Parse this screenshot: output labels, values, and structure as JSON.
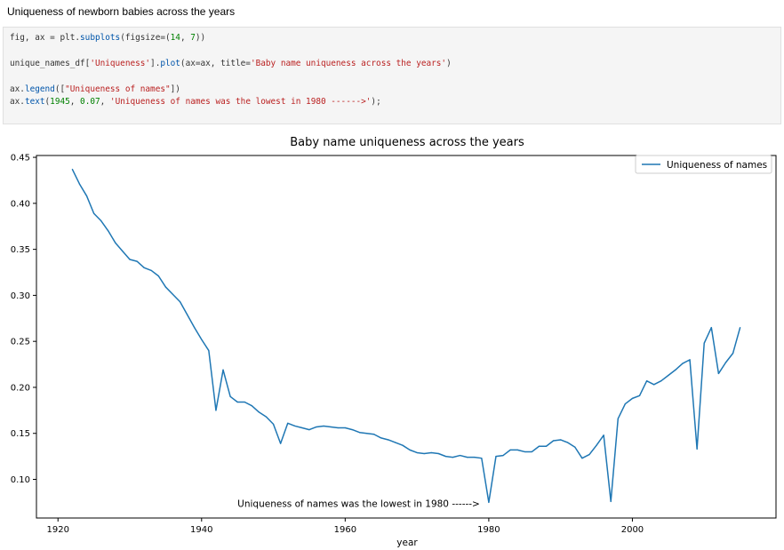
{
  "heading": "Uniqueness of newborn babies across the years",
  "code": {
    "line1": {
      "a": "fig, ax = plt.",
      "b": "subplots",
      "c": "(figsize=(",
      "d": "14",
      "e": ", ",
      "f": "7",
      "g": "))"
    },
    "line2": {
      "a": "unique_names_df[",
      "b": "'Uniqueness'",
      "c": "].",
      "d": "plot",
      "e": "(ax=ax, title=",
      "f": "'Baby name uniqueness across the years'",
      "g": ")"
    },
    "line3": {
      "a": "ax.",
      "b": "legend",
      "c": "([",
      "d": "\"Uniqueness of names\"",
      "e": "])"
    },
    "line4": {
      "a": "ax.",
      "b": "text",
      "c": "(",
      "d": "1945",
      "e": ", ",
      "f": "0.07",
      "g": ", ",
      "h": "'Uniqueness of names was the lowest in 1980 ------>'",
      "i": ");"
    }
  },
  "chart_data": {
    "type": "line",
    "title": "Baby name uniqueness across the years",
    "xlabel": "year",
    "ylabel": "",
    "xlim": [
      1917,
      2020
    ],
    "ylim": [
      0.058,
      0.452
    ],
    "xticks": [
      1920,
      1940,
      1960,
      1980,
      2000
    ],
    "yticks": [
      0.1,
      0.15,
      0.2,
      0.25,
      0.3,
      0.35,
      0.4,
      0.45
    ],
    "ytick_labels": [
      "0.10",
      "0.15",
      "0.20",
      "0.25",
      "0.30",
      "0.35",
      "0.40",
      "0.45"
    ],
    "grid": false,
    "legend": "top-right",
    "line_color": "#1f77b4",
    "annotation": {
      "x": 1945,
      "y": 0.07,
      "text": "Uniqueness of names was the lowest in 1980 ------>"
    },
    "series": [
      {
        "name": "Uniqueness of names",
        "x": [
          1922,
          1923,
          1924,
          1925,
          1926,
          1927,
          1928,
          1929,
          1930,
          1931,
          1932,
          1933,
          1934,
          1935,
          1936,
          1937,
          1938,
          1939,
          1940,
          1941,
          1942,
          1943,
          1944,
          1945,
          1946,
          1947,
          1948,
          1949,
          1950,
          1951,
          1952,
          1953,
          1954,
          1955,
          1956,
          1957,
          1958,
          1959,
          1960,
          1961,
          1962,
          1963,
          1964,
          1965,
          1966,
          1967,
          1968,
          1969,
          1970,
          1971,
          1972,
          1973,
          1974,
          1975,
          1976,
          1977,
          1978,
          1979,
          1980,
          1981,
          1982,
          1983,
          1984,
          1985,
          1986,
          1987,
          1988,
          1989,
          1990,
          1991,
          1992,
          1993,
          1994,
          1995,
          1996,
          1997,
          1998,
          1999,
          2000,
          2001,
          2002,
          2003,
          2004,
          2005,
          2006,
          2007,
          2008,
          2009,
          2010,
          2011,
          2012,
          2013,
          2014,
          2015
        ],
        "values": [
          0.437,
          0.421,
          0.408,
          0.389,
          0.381,
          0.37,
          0.357,
          0.348,
          0.339,
          0.337,
          0.33,
          0.327,
          0.321,
          0.309,
          0.301,
          0.293,
          0.279,
          0.265,
          0.252,
          0.24,
          0.175,
          0.219,
          0.19,
          0.184,
          0.184,
          0.18,
          0.173,
          0.168,
          0.16,
          0.139,
          0.161,
          0.158,
          0.156,
          0.154,
          0.157,
          0.158,
          0.157,
          0.156,
          0.156,
          0.154,
          0.151,
          0.15,
          0.149,
          0.145,
          0.143,
          0.14,
          0.137,
          0.132,
          0.129,
          0.128,
          0.129,
          0.128,
          0.125,
          0.124,
          0.126,
          0.124,
          0.124,
          0.123,
          0.075,
          0.125,
          0.126,
          0.132,
          0.132,
          0.13,
          0.13,
          0.136,
          0.136,
          0.142,
          0.143,
          0.14,
          0.135,
          0.123,
          0.127,
          0.137,
          0.148,
          0.076,
          0.166,
          0.182,
          0.188,
          0.191,
          0.207,
          0.203,
          0.207,
          0.213,
          0.219,
          0.226,
          0.23,
          0.133,
          0.248,
          0.265,
          0.215,
          0.227,
          0.237,
          0.265
        ]
      }
    ]
  }
}
